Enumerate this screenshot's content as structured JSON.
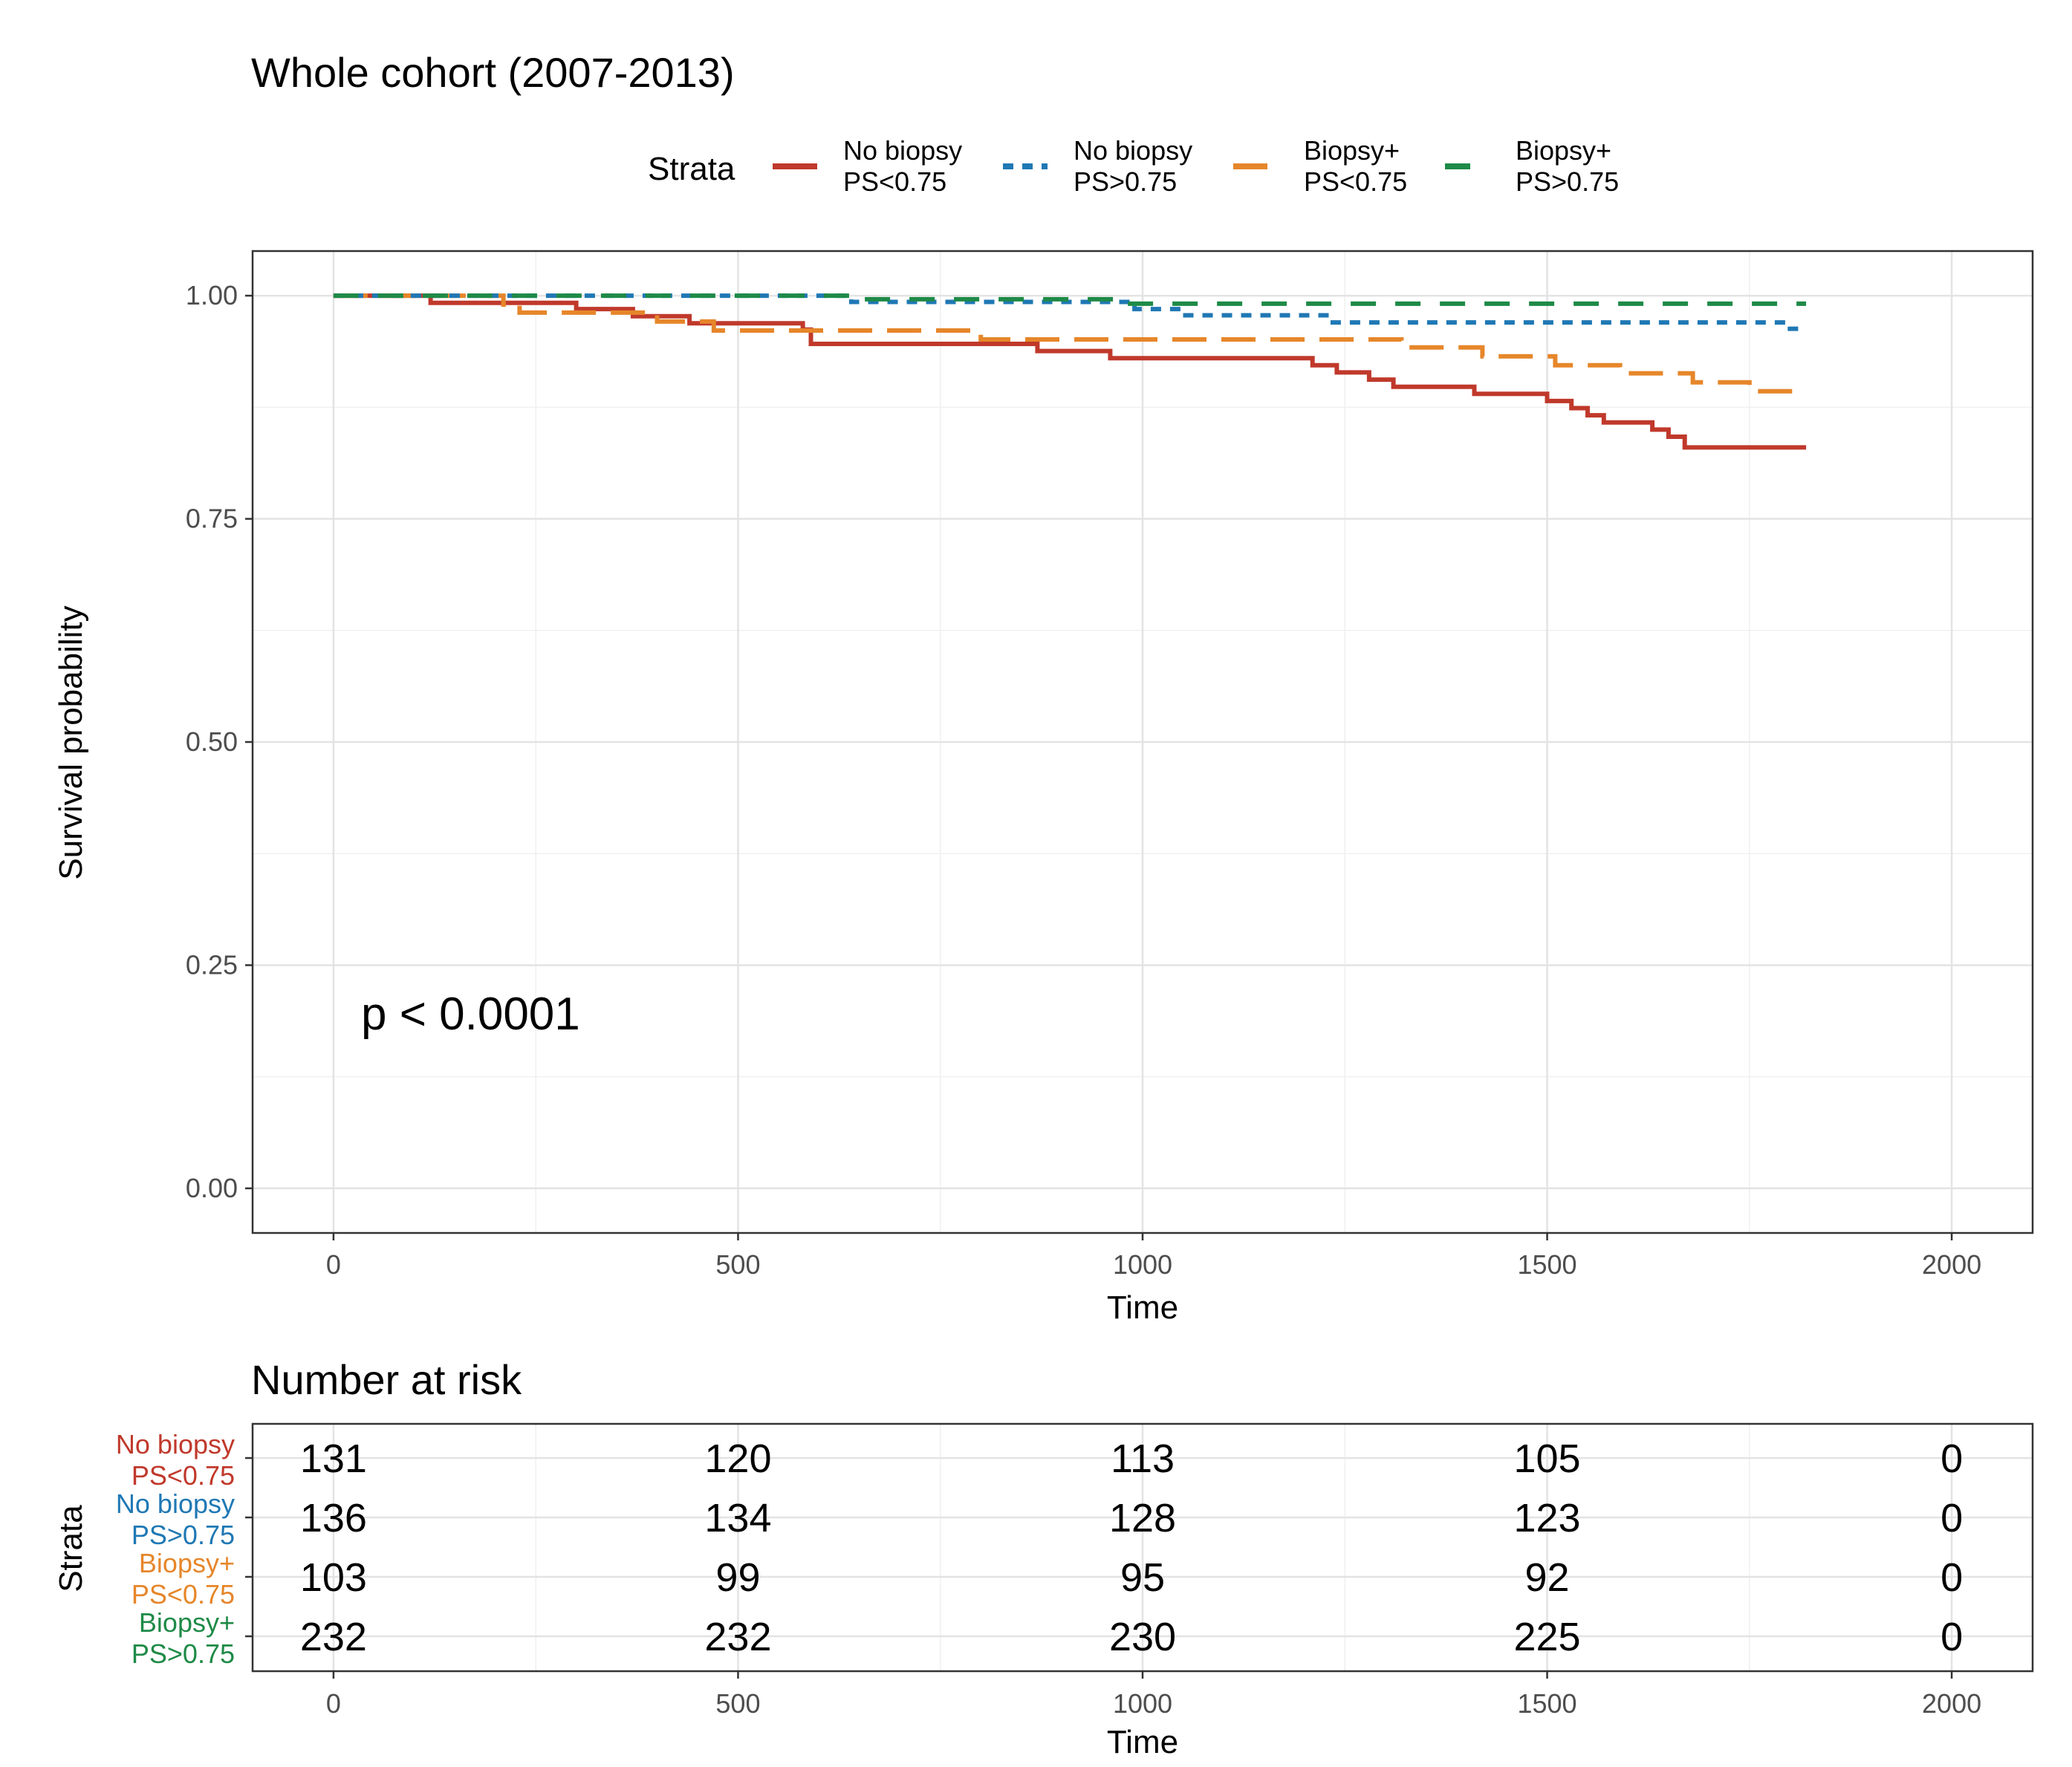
{
  "chart_data": {
    "type": "line",
    "subtype": "kaplan-meier step",
    "title": "Whole cohort (2007-2013)",
    "xlabel": "Time",
    "ylabel": "Survival probability",
    "xlim": [
      -100,
      2100
    ],
    "ylim": [
      -0.05,
      1.05
    ],
    "x_ticks": [
      0,
      500,
      1000,
      1500,
      2000
    ],
    "x_tick_labels": [
      "0",
      "500",
      "1000",
      "1500",
      "2000"
    ],
    "y_ticks": [
      0,
      0.25,
      0.5,
      0.75,
      1
    ],
    "y_tick_labels": [
      "0.00",
      "0.25",
      "0.50",
      "0.75",
      "1.00"
    ],
    "grid": true,
    "annotation": "p < 0.0001",
    "legend": {
      "title": "Strata",
      "placement": "top",
      "entries": [
        {
          "line1": "No biopsy",
          "line2": "PS<0.75"
        },
        {
          "line1": "No biopsy",
          "line2": "PS>0.75"
        },
        {
          "line1": "Biopsy+",
          "line2": "PS<0.75"
        },
        {
          "line1": "Biopsy+",
          "line2": "PS>0.75"
        }
      ]
    },
    "series": [
      {
        "name": "No biopsy PS<0.75",
        "color": "#c0392b",
        "dash": "solid",
        "points": [
          [
            0,
            1.0
          ],
          [
            120,
            0.992
          ],
          [
            300,
            0.985
          ],
          [
            370,
            0.977
          ],
          [
            440,
            0.969
          ],
          [
            580,
            0.962
          ],
          [
            590,
            0.946
          ],
          [
            870,
            0.938
          ],
          [
            960,
            0.93
          ],
          [
            1210,
            0.922
          ],
          [
            1240,
            0.914
          ],
          [
            1280,
            0.906
          ],
          [
            1310,
            0.898
          ],
          [
            1410,
            0.89
          ],
          [
            1500,
            0.882
          ],
          [
            1530,
            0.874
          ],
          [
            1550,
            0.866
          ],
          [
            1570,
            0.858
          ],
          [
            1630,
            0.85
          ],
          [
            1650,
            0.842
          ],
          [
            1670,
            0.83
          ],
          [
            1820,
            0.83
          ]
        ]
      },
      {
        "name": "No biopsy PS>0.75",
        "color": "#1f78b4",
        "dash": "short",
        "points": [
          [
            0,
            1.0
          ],
          [
            640,
            0.993
          ],
          [
            990,
            0.985
          ],
          [
            1050,
            0.978
          ],
          [
            1230,
            0.97
          ],
          [
            1800,
            0.963
          ],
          [
            1820,
            0.963
          ]
        ]
      },
      {
        "name": "Biopsy+ PS<0.75",
        "color": "#e6862a",
        "dash": "long",
        "points": [
          [
            0,
            1.0
          ],
          [
            210,
            0.99
          ],
          [
            230,
            0.981
          ],
          [
            400,
            0.971
          ],
          [
            470,
            0.961
          ],
          [
            800,
            0.951
          ],
          [
            1320,
            0.942
          ],
          [
            1420,
            0.932
          ],
          [
            1510,
            0.922
          ],
          [
            1590,
            0.913
          ],
          [
            1680,
            0.903
          ],
          [
            1750,
            0.893
          ],
          [
            1820,
            0.893
          ]
        ]
      },
      {
        "name": "Biopsy+ PS>0.75",
        "color": "#1e8a47",
        "dash": "medium",
        "points": [
          [
            0,
            1.0
          ],
          [
            640,
            0.996
          ],
          [
            980,
            0.991
          ],
          [
            1820,
            0.991
          ]
        ]
      }
    ]
  },
  "risk_table": {
    "title": "Number at risk",
    "ylabel": "Strata",
    "xlabel": "Time",
    "times": [
      0,
      500,
      1000,
      1500,
      2000
    ],
    "time_labels": [
      "0",
      "500",
      "1000",
      "1500",
      "2000"
    ],
    "rows": [
      {
        "label1": "No biopsy",
        "label2": "PS<0.75",
        "color": "#c0392b",
        "counts": [
          "131",
          "120",
          "113",
          "105",
          "0"
        ]
      },
      {
        "label1": "No biopsy",
        "label2": "PS>0.75",
        "color": "#1f78b4",
        "counts": [
          "136",
          "134",
          "128",
          "123",
          "0"
        ]
      },
      {
        "label1": "Biopsy+",
        "label2": "PS<0.75",
        "color": "#e6862a",
        "counts": [
          "103",
          "99",
          "95",
          "92",
          "0"
        ]
      },
      {
        "label1": "Biopsy+",
        "label2": "PS>0.75",
        "color": "#1e8a47",
        "counts": [
          "232",
          "232",
          "230",
          "225",
          "0"
        ]
      }
    ]
  }
}
